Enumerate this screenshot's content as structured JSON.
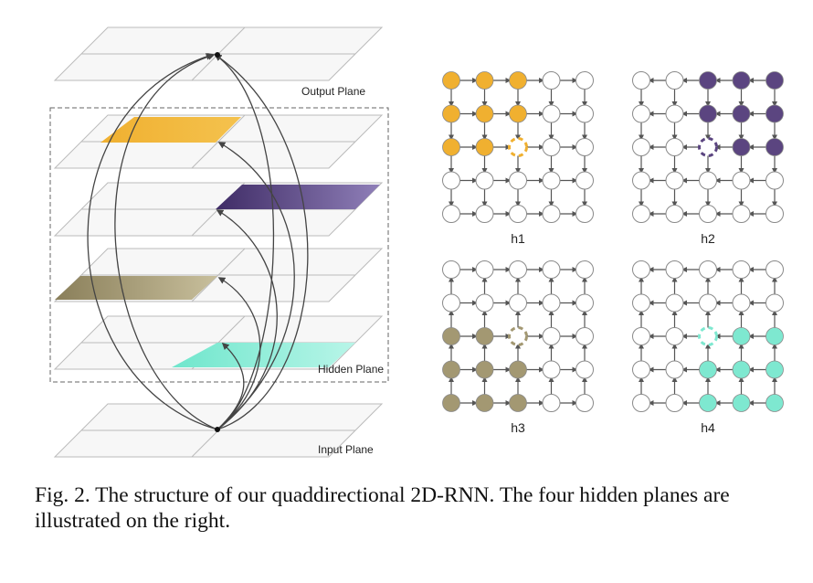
{
  "figure": {
    "labels": {
      "output_plane": "Output Plane",
      "hidden_plane": "Hidden Plane",
      "input_plane": "Input Plane"
    },
    "colors": {
      "h1": "#f0b030",
      "h2": "#5b4580",
      "h3": "#a39872",
      "h4": "#7ee8d0",
      "empty_node": "#ffffff",
      "edge": "#555555"
    },
    "grids": [
      {
        "id": "h1",
        "label": "h1",
        "color_key": "h1"
      },
      {
        "id": "h2",
        "label": "h2",
        "color_key": "h2"
      },
      {
        "id": "h3",
        "label": "h3",
        "color_key": "h3"
      },
      {
        "id": "h4",
        "label": "h4",
        "color_key": "h4"
      }
    ]
  },
  "caption": {
    "text": "Fig. 2.   The structure of our quaddirectional 2D-RNN. The four hidden planes are illustrated on the right."
  }
}
